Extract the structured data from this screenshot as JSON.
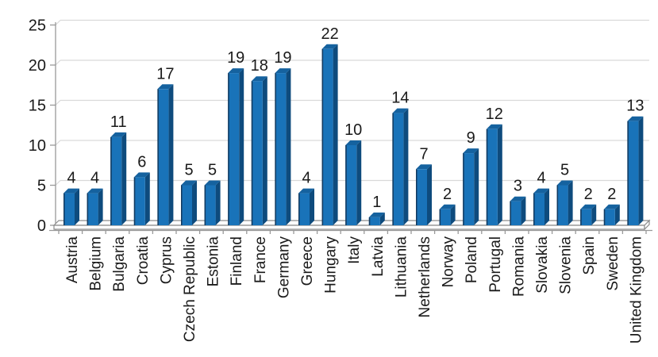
{
  "chart_data": {
    "type": "bar",
    "style": "3d-clustered-column",
    "title": "",
    "xlabel": "",
    "ylabel": "",
    "categories": [
      "Austria",
      "Belgium",
      "Bulgaria",
      "Croatia",
      "Cyprus",
      "Czech Republic",
      "Estonia",
      "Finland",
      "France",
      "Germany",
      "Greece",
      "Hungary",
      "Italy",
      "Latvia",
      "Lithuania",
      "Netherlands",
      "Norway",
      "Poland",
      "Portugal",
      "Romania",
      "Slovakia",
      "Slovenia",
      "Spain",
      "Sweden",
      "United Kingdom"
    ],
    "values": [
      4,
      4,
      11,
      6,
      17,
      5,
      5,
      19,
      18,
      19,
      4,
      22,
      10,
      1,
      14,
      7,
      2,
      9,
      12,
      3,
      4,
      5,
      2,
      2,
      13
    ],
    "ylim": [
      0,
      25
    ],
    "ytick_interval": 5,
    "ytick_labels": [
      "0",
      "5",
      "10",
      "15",
      "20",
      "25"
    ],
    "grid": true,
    "legend": false,
    "data_labels": true,
    "x_labels_rotated_degrees": 90,
    "colors": {
      "bar_front": "#1973B9",
      "bar_top": "#15629F",
      "bar_side": "#0E4B7D",
      "bar_edge": "#143A5E",
      "gridline": "#D9D9D9",
      "axis": "#999999",
      "floor_stroke": "#8C8C8C",
      "floor_fill": "#FFFFFF",
      "text": "#1A1A1A",
      "background": "#FFFFFF"
    }
  }
}
